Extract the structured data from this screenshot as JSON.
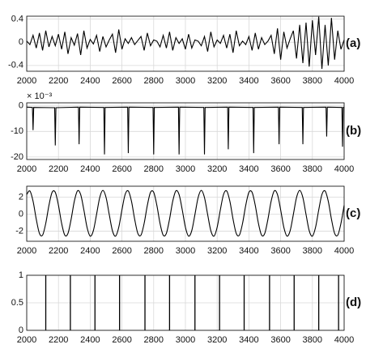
{
  "chart_data": [
    {
      "type": "line",
      "label": "(a)",
      "color": "#000000",
      "grid": true,
      "x": [
        2000,
        2020,
        2040,
        2060,
        2080,
        2100,
        2120,
        2140,
        2160,
        2180,
        2200,
        2220,
        2240,
        2260,
        2280,
        2300,
        2320,
        2340,
        2360,
        2380,
        2400,
        2420,
        2440,
        2460,
        2480,
        2500,
        2520,
        2540,
        2560,
        2580,
        2600,
        2620,
        2640,
        2660,
        2680,
        2700,
        2720,
        2740,
        2760,
        2780,
        2800,
        2820,
        2840,
        2860,
        2880,
        2900,
        2920,
        2940,
        2960,
        2980,
        3000,
        3020,
        3040,
        3060,
        3080,
        3100,
        3120,
        3140,
        3160,
        3180,
        3200,
        3220,
        3240,
        3260,
        3280,
        3300,
        3320,
        3340,
        3360,
        3380,
        3400,
        3420,
        3440,
        3460,
        3480,
        3500,
        3520,
        3540,
        3560,
        3580,
        3600,
        3620,
        3640,
        3660,
        3680,
        3700,
        3720,
        3740,
        3760,
        3780,
        3800,
        3820,
        3840,
        3860,
        3880,
        3900,
        3920,
        3940,
        3960,
        3980,
        4000
      ],
      "values": [
        0.02,
        -0.04,
        0.12,
        -0.1,
        0.16,
        -0.14,
        0.2,
        -0.08,
        0.1,
        -0.06,
        0.14,
        -0.12,
        0.18,
        -0.2,
        0.08,
        -0.05,
        0.15,
        -0.22,
        0.2,
        -0.1,
        0.05,
        -0.03,
        0.12,
        -0.16,
        0.1,
        -0.08,
        0.04,
        0.14,
        -0.18,
        0.22,
        -0.12,
        0.06,
        -0.02,
        0.08,
        -0.04,
        0.03,
        0.1,
        -0.14,
        0.16,
        -0.06,
        0.04,
        0.02,
        -0.08,
        0.12,
        -0.1,
        0.18,
        -0.14,
        0.08,
        -0.02,
        0.06,
        -0.12,
        0.14,
        -0.1,
        0.04,
        0.02,
        -0.06,
        0.1,
        -0.16,
        0.18,
        -0.08,
        0.04,
        -0.02,
        0.12,
        -0.1,
        0.14,
        -0.18,
        0.2,
        -0.06,
        0.02,
        -0.04,
        0.1,
        -0.14,
        0.16,
        -0.12,
        0.08,
        -0.04,
        0.02,
        0.12,
        -0.2,
        0.24,
        -0.3,
        0.18,
        -0.1,
        0.06,
        0.2,
        -0.28,
        0.3,
        -0.36,
        0.34,
        -0.42,
        0.38,
        -0.22,
        0.44,
        -0.46,
        0.3,
        -0.4,
        0.42,
        -0.3,
        0.2,
        -0.12,
        0.04
      ],
      "xlim": [
        2000,
        4000
      ],
      "xticks": [
        2000,
        2200,
        2400,
        2600,
        2800,
        3000,
        3200,
        3400,
        3600,
        3800,
        4000
      ],
      "ylim": [
        -0.5,
        0.45
      ],
      "yticks": [
        -0.4,
        0,
        0.4
      ]
    },
    {
      "type": "line",
      "label": "(b)",
      "color": "#000000",
      "grid": true,
      "exponent_label": "× 10⁻³",
      "x": [
        2000,
        2036,
        2040,
        2044,
        2176,
        2180,
        2184,
        2326,
        2330,
        2334,
        2486,
        2490,
        2494,
        2636,
        2640,
        2644,
        2796,
        2800,
        2804,
        2956,
        2960,
        2964,
        3116,
        3120,
        3124,
        3266,
        3270,
        3274,
        3426,
        3430,
        3434,
        3586,
        3590,
        3594,
        3736,
        3740,
        3744,
        3886,
        3890,
        3894,
        3986,
        3990,
        3994,
        4000
      ],
      "values": [
        -0.5,
        -0.6,
        -9.5,
        -0.6,
        -0.7,
        -15.5,
        -0.7,
        -0.5,
        -15,
        -0.5,
        -0.6,
        -19,
        -0.6,
        -0.5,
        -18.5,
        -0.5,
        -0.6,
        -19,
        -0.6,
        -0.5,
        -19,
        -0.5,
        -0.6,
        -19,
        -0.6,
        -0.5,
        -17,
        -0.5,
        -0.6,
        -18.5,
        -0.6,
        -0.5,
        -15,
        -0.5,
        -0.6,
        -15,
        -0.6,
        -0.5,
        -12,
        -0.5,
        -0.6,
        -16,
        -0.6,
        -0.5
      ],
      "xlim": [
        2000,
        4000
      ],
      "xticks": [
        2000,
        2200,
        2400,
        2600,
        2800,
        3000,
        3200,
        3400,
        3600,
        3800,
        4000
      ],
      "ylim": [
        -21,
        1.2
      ],
      "yticks": [
        -20,
        -10,
        0
      ]
    },
    {
      "type": "line",
      "label": "(c)",
      "color": "#000000",
      "grid": true,
      "smooth": true,
      "x": [
        2000,
        2020,
        2040,
        2060,
        2080,
        2100,
        2120,
        2140,
        2160,
        2180,
        2200,
        2220,
        2240,
        2260,
        2280,
        2300,
        2320,
        2340,
        2360,
        2380,
        2400,
        2420,
        2440,
        2460,
        2480,
        2500,
        2520,
        2540,
        2560,
        2580,
        2600,
        2620,
        2640,
        2660,
        2680,
        2700,
        2720,
        2740,
        2760,
        2780,
        2800,
        2820,
        2840,
        2860,
        2880,
        2900,
        2920,
        2940,
        2960,
        2980,
        3000,
        3020,
        3040,
        3060,
        3080,
        3100,
        3120,
        3140,
        3160,
        3180,
        3200,
        3220,
        3240,
        3260,
        3280,
        3300,
        3320,
        3340,
        3360,
        3380,
        3400,
        3420,
        3440,
        3460,
        3480,
        3500,
        3520,
        3540,
        3560,
        3580,
        3600,
        3620,
        3640,
        3660,
        3680,
        3700,
        3720,
        3740,
        3760,
        3780,
        3800,
        3820,
        3840,
        3860,
        3880,
        3900,
        3920,
        3940,
        3960,
        3980,
        4000
      ],
      "values": [
        2.32,
        2.74,
        1.53,
        -0.58,
        -2.26,
        -2.47,
        -1.08,
        1.04,
        2.58,
        2.58,
        1.04,
        -1.09,
        -2.48,
        -2.26,
        -0.58,
        1.53,
        2.75,
        2.31,
        0.51,
        -1.55,
        -2.59,
        -1.94,
        -0.03,
        1.96,
        2.8,
        1.96,
        -0.04,
        -1.95,
        -2.59,
        -1.54,
        0.51,
        2.32,
        2.74,
        1.53,
        -0.58,
        -2.26,
        -2.47,
        -1.08,
        1.04,
        2.58,
        2.58,
        1.04,
        -1.09,
        -2.48,
        -2.26,
        -0.58,
        1.53,
        2.75,
        2.31,
        0.51,
        -1.55,
        -2.59,
        -1.94,
        -0.03,
        1.96,
        2.8,
        1.96,
        -0.04,
        -1.95,
        -2.59,
        -1.54,
        0.51,
        2.32,
        2.74,
        1.53,
        -0.58,
        -2.26,
        -2.47,
        -1.08,
        1.04,
        2.58,
        2.58,
        1.04,
        -1.09,
        -2.48,
        -2.26,
        -0.58,
        1.53,
        2.75,
        2.31,
        0.51,
        -1.55,
        -2.59,
        -1.94,
        -0.03,
        1.96,
        2.8,
        1.96,
        -0.04,
        -1.95,
        -2.59,
        -1.54,
        0.51,
        2.32,
        2.74,
        1.53,
        -0.58,
        -2.26,
        -2.47,
        -1.08,
        1.04
      ],
      "xlim": [
        2000,
        4000
      ],
      "xticks": [
        2000,
        2200,
        2400,
        2600,
        2800,
        3000,
        3200,
        3400,
        3600,
        3800,
        4000
      ],
      "ylim": [
        -3.2,
        3.3
      ],
      "yticks": [
        -2,
        0,
        2
      ]
    },
    {
      "type": "stem",
      "label": "(d)",
      "color": "#000000",
      "grid": true,
      "x": [
        2120,
        2275,
        2430,
        2585,
        2745,
        2900,
        3060,
        3215,
        3370,
        3530,
        3685,
        3840,
        3965
      ],
      "values": [
        1,
        1,
        1,
        1,
        1,
        1,
        1,
        1,
        1,
        1,
        1,
        1,
        1
      ],
      "xlim": [
        2000,
        4000
      ],
      "xticks": [
        2000,
        2200,
        2400,
        2600,
        2800,
        3000,
        3200,
        3400,
        3600,
        3800,
        4000
      ],
      "ylim": [
        0,
        1
      ],
      "yticks": [
        0,
        0.5,
        1
      ]
    }
  ]
}
